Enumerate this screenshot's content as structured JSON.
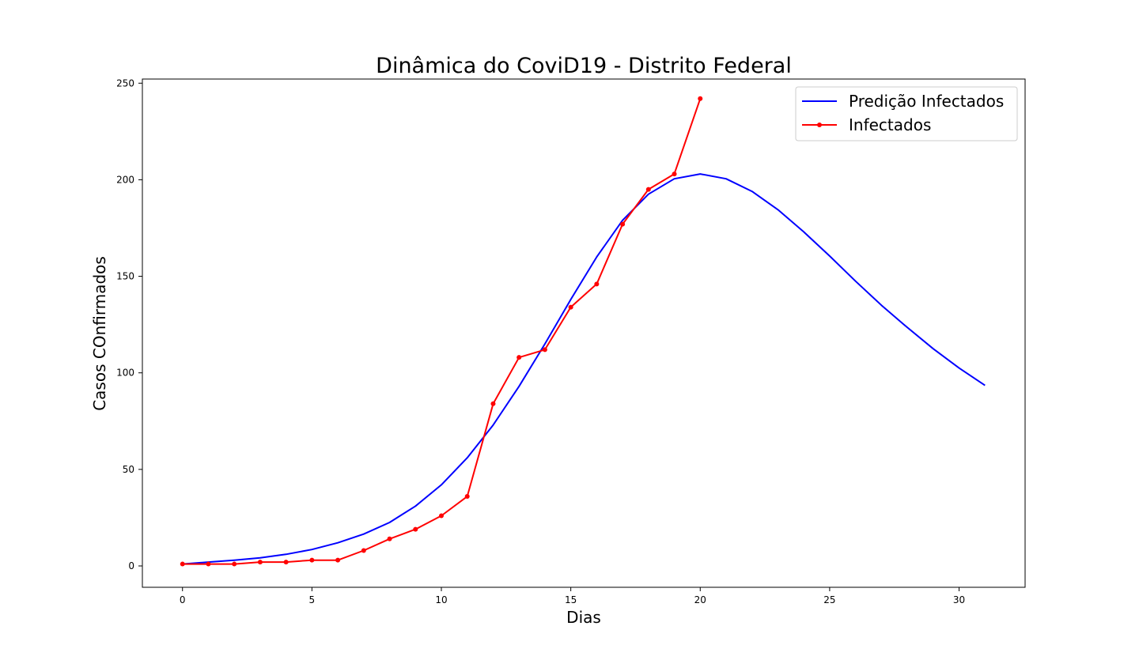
{
  "chart_data": {
    "type": "line",
    "title": "Dinâmica do CoviD19 - Distrito Federal",
    "xlabel": "Dias",
    "ylabel": "Casos COnfirmados",
    "xlim": [
      -1.55,
      32.55
    ],
    "ylim": [
      -11.05,
      252.15
    ],
    "xticks": [
      0,
      5,
      10,
      15,
      20,
      25,
      30
    ],
    "yticks": [
      0,
      50,
      100,
      150,
      200,
      250
    ],
    "grid": false,
    "legend_position": "top-right",
    "series": [
      {
        "name": "Predição Infectados",
        "color": "#0000ff",
        "marker": "none",
        "x": [
          0,
          1,
          2,
          3,
          4,
          5,
          6,
          7,
          8,
          9,
          10,
          11,
          12,
          13,
          14,
          15,
          16,
          17,
          18,
          19,
          20,
          21,
          22,
          23,
          24,
          25,
          26,
          27,
          28,
          29,
          30,
          31
        ],
        "values": [
          1,
          2,
          3,
          4.2,
          6,
          8.5,
          12,
          16.5,
          22.5,
          31,
          42,
          56,
          73,
          93,
          115,
          138,
          160,
          179,
          192.5,
          200.5,
          203,
          200.5,
          194,
          184.5,
          173,
          160.5,
          147.5,
          135,
          123.5,
          112.5,
          102.5,
          93.5
        ]
      },
      {
        "name": "Infectados",
        "color": "#ff0000",
        "marker": "circle",
        "x": [
          0,
          1,
          2,
          3,
          4,
          5,
          6,
          7,
          8,
          9,
          10,
          11,
          12,
          13,
          14,
          15,
          16,
          17,
          18,
          19,
          20
        ],
        "values": [
          1,
          1,
          1,
          2,
          2,
          3,
          3,
          8,
          14,
          19,
          26,
          36,
          84,
          108,
          112,
          134,
          146,
          177,
          195,
          203,
          242
        ]
      }
    ]
  }
}
